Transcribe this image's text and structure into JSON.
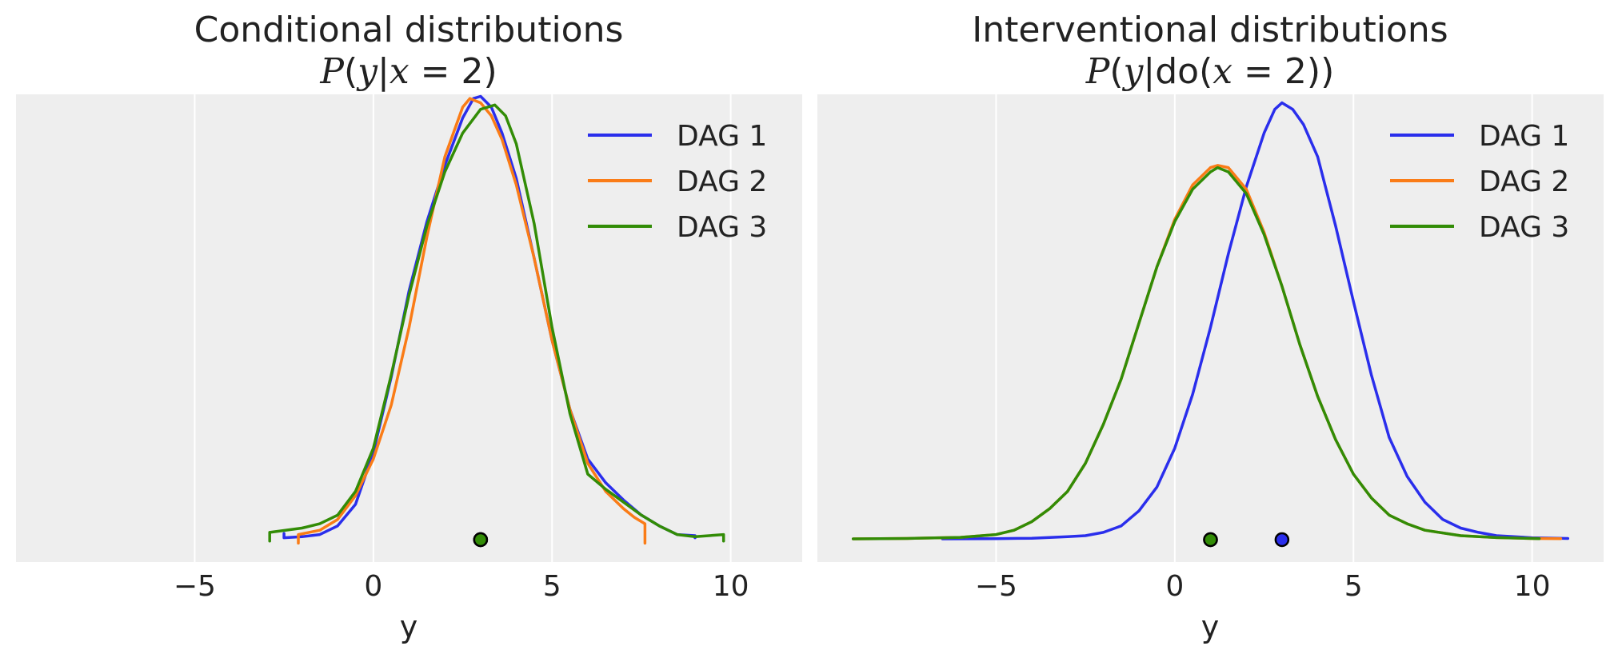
{
  "chart_data": [
    {
      "type": "line",
      "title": "Conditional distributions",
      "subtitle": "P(y|x = 2)",
      "subtitle_parts": {
        "p": "P",
        "open": "(",
        "y": "y",
        "bar": "|",
        "x": "x",
        "eq": " = 2)"
      },
      "xlabel": "y",
      "ylabel": "",
      "xlim": [
        -10,
        12
      ],
      "ylim": [
        0,
        0.21
      ],
      "xticks": [
        -5,
        0,
        5,
        10
      ],
      "xtick_labels": [
        "−5",
        "0",
        "5",
        "10"
      ],
      "grid": true,
      "legend": {
        "position": "top-right",
        "entries": [
          "DAG 1",
          "DAG 2",
          "DAG 3"
        ]
      },
      "series": [
        {
          "name": "DAG 1",
          "color": "#2a2eec",
          "x": [
            -2.5,
            -2.5,
            -2.0,
            -1.5,
            -1.0,
            -0.5,
            0.0,
            0.5,
            1.0,
            1.5,
            2.0,
            2.5,
            2.8,
            3.0,
            3.3,
            3.6,
            4.0,
            4.5,
            5.0,
            5.5,
            6.0,
            6.5,
            7.0,
            7.5,
            8.0,
            8.5,
            9.0,
            9.0
          ],
          "y": [
            0.0025,
            0.0005,
            0.001,
            0.002,
            0.006,
            0.016,
            0.04,
            0.075,
            0.115,
            0.147,
            0.173,
            0.195,
            0.204,
            0.205,
            0.2,
            0.188,
            0.167,
            0.13,
            0.092,
            0.06,
            0.037,
            0.026,
            0.018,
            0.011,
            0.006,
            0.002,
            0.0015,
            0.0005
          ]
        },
        {
          "name": "DAG 2",
          "color": "#fa7c17",
          "x": [
            -2.1,
            -2.1,
            -1.5,
            -1.0,
            -0.5,
            0.0,
            0.5,
            1.0,
            1.5,
            2.0,
            2.5,
            2.7,
            3.0,
            3.3,
            3.6,
            4.0,
            4.5,
            5.0,
            5.5,
            6.0,
            6.5,
            7.0,
            7.3,
            7.6,
            7.6
          ],
          "y": [
            -0.002,
            0.002,
            0.004,
            0.009,
            0.02,
            0.037,
            0.062,
            0.098,
            0.14,
            0.177,
            0.2,
            0.204,
            0.202,
            0.196,
            0.185,
            0.164,
            0.13,
            0.092,
            0.06,
            0.035,
            0.022,
            0.014,
            0.01,
            0.007,
            -0.002
          ]
        },
        {
          "name": "DAG 3",
          "color": "#328c06",
          "x": [
            -2.9,
            -2.9,
            -2.0,
            -1.5,
            -1.0,
            -0.5,
            0.0,
            0.5,
            1.0,
            1.5,
            2.0,
            2.5,
            3.0,
            3.4,
            3.7,
            4.0,
            4.5,
            5.0,
            5.5,
            6.0,
            6.5,
            7.0,
            7.5,
            8.0,
            8.5,
            9.0,
            9.8,
            9.8
          ],
          "y": [
            -0.001,
            0.003,
            0.005,
            0.007,
            0.011,
            0.022,
            0.042,
            0.076,
            0.113,
            0.145,
            0.17,
            0.188,
            0.199,
            0.201,
            0.196,
            0.183,
            0.146,
            0.098,
            0.058,
            0.03,
            0.023,
            0.017,
            0.011,
            0.006,
            0.002,
            0.001,
            0.002,
            -0.001
          ]
        }
      ],
      "point_markers": [
        {
          "x": 3.0,
          "color": "#2a2eec"
        },
        {
          "x": 3.0,
          "color": "#fa7c17"
        },
        {
          "x": 3.0,
          "color": "#328c06"
        }
      ]
    },
    {
      "type": "line",
      "title": "Interventional distributions",
      "subtitle": "P(y|do(x = 2))",
      "subtitle_parts": {
        "p": "P",
        "open": "(",
        "y": "y",
        "bar": "|",
        "do": "do(",
        "x": "x",
        "eq": " = 2))"
      },
      "xlabel": "y",
      "ylabel": "",
      "xlim": [
        -10,
        12
      ],
      "ylim": [
        0,
        0.21
      ],
      "xticks": [
        -5,
        0,
        5,
        10
      ],
      "xtick_labels": [
        "−5",
        "0",
        "5",
        "10"
      ],
      "grid": true,
      "legend": {
        "position": "top-right",
        "entries": [
          "DAG 1",
          "DAG 2",
          "DAG 3"
        ]
      },
      "series": [
        {
          "name": "DAG 1",
          "color": "#2a2eec",
          "x": [
            -6.5,
            -5.0,
            -4.0,
            -3.0,
            -2.5,
            -2.0,
            -1.5,
            -1.0,
            -0.5,
            0.0,
            0.5,
            1.0,
            1.5,
            2.0,
            2.5,
            2.8,
            3.0,
            3.3,
            3.6,
            4.0,
            4.5,
            5.0,
            5.5,
            6.0,
            6.5,
            7.0,
            7.5,
            8.0,
            8.5,
            9.0,
            9.5,
            10.0,
            11.0
          ],
          "y": [
            0.0,
            0.0001,
            0.0003,
            0.001,
            0.0015,
            0.003,
            0.006,
            0.013,
            0.024,
            0.042,
            0.067,
            0.098,
            0.132,
            0.163,
            0.188,
            0.199,
            0.202,
            0.199,
            0.192,
            0.177,
            0.145,
            0.11,
            0.076,
            0.047,
            0.029,
            0.017,
            0.009,
            0.005,
            0.003,
            0.0015,
            0.001,
            0.0005,
            0.0002
          ]
        },
        {
          "name": "DAG 2",
          "color": "#fa7c17",
          "x": [
            -9.0,
            -7.5,
            -6.0,
            -5.0,
            -4.5,
            -4.0,
            -3.5,
            -3.0,
            -2.5,
            -2.0,
            -1.5,
            -1.0,
            -0.5,
            0.0,
            0.5,
            1.0,
            1.2,
            1.5,
            2.0,
            2.5,
            3.0,
            3.5,
            4.0,
            4.5,
            5.0,
            5.5,
            6.0,
            6.5,
            7.0,
            8.0,
            9.0,
            10.0,
            10.8
          ],
          "y": [
            0.0,
            0.0002,
            0.0007,
            0.002,
            0.004,
            0.008,
            0.014,
            0.022,
            0.035,
            0.053,
            0.074,
            0.1,
            0.126,
            0.148,
            0.164,
            0.172,
            0.173,
            0.172,
            0.162,
            0.142,
            0.117,
            0.09,
            0.066,
            0.046,
            0.03,
            0.019,
            0.011,
            0.007,
            0.004,
            0.0015,
            0.0006,
            0.0002,
            0.0001
          ]
        },
        {
          "name": "DAG 3",
          "color": "#328c06",
          "x": [
            -9.0,
            -7.5,
            -6.0,
            -5.0,
            -4.5,
            -4.0,
            -3.5,
            -3.0,
            -2.5,
            -2.0,
            -1.5,
            -1.0,
            -0.5,
            0.0,
            0.5,
            1.0,
            1.2,
            1.5,
            2.0,
            2.5,
            3.0,
            3.5,
            4.0,
            4.5,
            5.0,
            5.5,
            6.0,
            6.5,
            7.0,
            8.0,
            9.0,
            10.2
          ],
          "y": [
            0.0,
            0.0002,
            0.0007,
            0.002,
            0.004,
            0.008,
            0.014,
            0.022,
            0.035,
            0.053,
            0.074,
            0.1,
            0.126,
            0.147,
            0.162,
            0.17,
            0.172,
            0.17,
            0.16,
            0.141,
            0.117,
            0.09,
            0.066,
            0.046,
            0.03,
            0.019,
            0.011,
            0.007,
            0.004,
            0.0015,
            0.0006,
            0.0001
          ]
        }
      ],
      "point_markers": [
        {
          "x": 3.0,
          "color": "#2a2eec"
        },
        {
          "x": 1.0,
          "color": "#fa7c17"
        },
        {
          "x": 1.0,
          "color": "#328c06"
        }
      ]
    }
  ]
}
